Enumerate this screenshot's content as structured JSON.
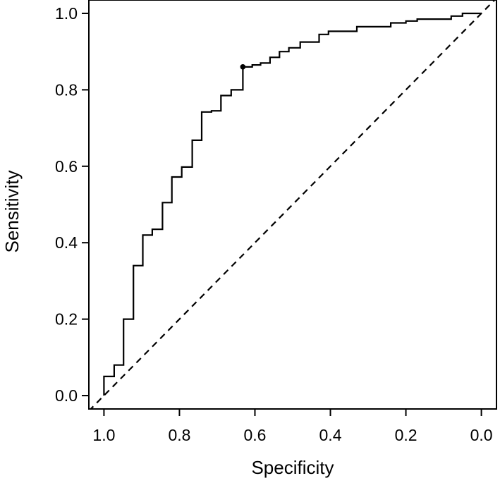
{
  "chart_data": {
    "type": "line",
    "title": "",
    "xlabel": "Specificity",
    "ylabel": "Sensitivity",
    "xlim": [
      1.04,
      -0.04
    ],
    "ylim": [
      -0.035,
      1.035
    ],
    "x_reversed": true,
    "grid": false,
    "legend": "none",
    "x_ticks": [
      {
        "value": 1.0,
        "label": "1.0"
      },
      {
        "value": 0.8,
        "label": "0.8"
      },
      {
        "value": 0.6,
        "label": "0.6"
      },
      {
        "value": 0.4,
        "label": "0.4"
      },
      {
        "value": 0.2,
        "label": "0.2"
      },
      {
        "value": 0.0,
        "label": "0.0"
      }
    ],
    "y_ticks": [
      {
        "value": 0.0,
        "label": "0.0"
      },
      {
        "value": 0.2,
        "label": "0.2"
      },
      {
        "value": 0.4,
        "label": "0.4"
      },
      {
        "value": 0.6,
        "label": "0.6"
      },
      {
        "value": 0.8,
        "label": "0.8"
      },
      {
        "value": 1.0,
        "label": "1.0"
      }
    ],
    "series": [
      {
        "style": "step",
        "color": "#000000",
        "points": [
          [
            1.0,
            0.0
          ],
          [
            1.0,
            0.05
          ],
          [
            0.973,
            0.05
          ],
          [
            0.973,
            0.08
          ],
          [
            0.948,
            0.08
          ],
          [
            0.948,
            0.2
          ],
          [
            0.922,
            0.2
          ],
          [
            0.922,
            0.34
          ],
          [
            0.897,
            0.34
          ],
          [
            0.897,
            0.42
          ],
          [
            0.872,
            0.42
          ],
          [
            0.872,
            0.435
          ],
          [
            0.845,
            0.435
          ],
          [
            0.845,
            0.505
          ],
          [
            0.82,
            0.505
          ],
          [
            0.82,
            0.572
          ],
          [
            0.794,
            0.572
          ],
          [
            0.794,
            0.598
          ],
          [
            0.766,
            0.598
          ],
          [
            0.766,
            0.668
          ],
          [
            0.741,
            0.668
          ],
          [
            0.741,
            0.742
          ],
          [
            0.715,
            0.742
          ],
          [
            0.715,
            0.745
          ],
          [
            0.69,
            0.745
          ],
          [
            0.69,
            0.785
          ],
          [
            0.663,
            0.785
          ],
          [
            0.663,
            0.8
          ],
          [
            0.632,
            0.8
          ],
          [
            0.632,
            0.86
          ],
          [
            0.607,
            0.86
          ],
          [
            0.607,
            0.865
          ],
          [
            0.585,
            0.865
          ],
          [
            0.585,
            0.87
          ],
          [
            0.56,
            0.87
          ],
          [
            0.56,
            0.885
          ],
          [
            0.535,
            0.885
          ],
          [
            0.535,
            0.9
          ],
          [
            0.51,
            0.9
          ],
          [
            0.51,
            0.91
          ],
          [
            0.48,
            0.91
          ],
          [
            0.48,
            0.925
          ],
          [
            0.43,
            0.925
          ],
          [
            0.43,
            0.945
          ],
          [
            0.405,
            0.945
          ],
          [
            0.405,
            0.953
          ],
          [
            0.33,
            0.953
          ],
          [
            0.33,
            0.965
          ],
          [
            0.24,
            0.965
          ],
          [
            0.24,
            0.975
          ],
          [
            0.2,
            0.975
          ],
          [
            0.2,
            0.98
          ],
          [
            0.17,
            0.98
          ],
          [
            0.17,
            0.985
          ],
          [
            0.08,
            0.985
          ],
          [
            0.08,
            0.993
          ],
          [
            0.05,
            0.993
          ],
          [
            0.05,
            1.0
          ],
          [
            0.0,
            1.0
          ]
        ]
      },
      {
        "style": "dashed",
        "color": "#000000",
        "points": [
          [
            1.04,
            -0.04
          ],
          [
            -0.04,
            1.04
          ]
        ]
      }
    ],
    "annotations": [
      {
        "type": "point",
        "x": 0.632,
        "y": 0.86
      }
    ]
  }
}
